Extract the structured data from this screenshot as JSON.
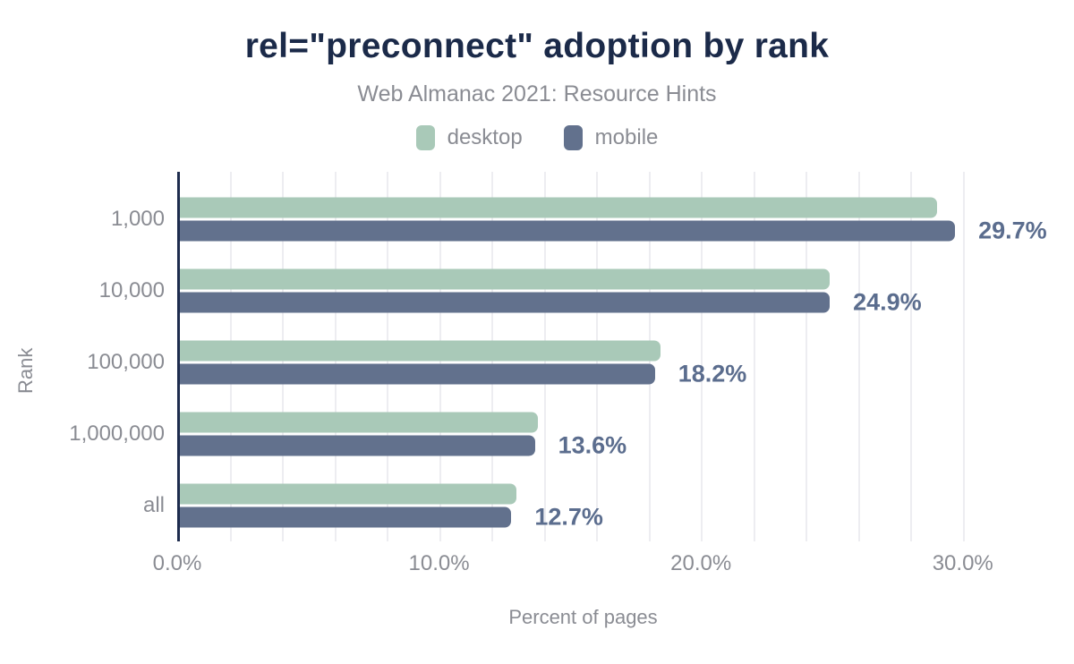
{
  "chart_data": {
    "type": "bar",
    "orientation": "horizontal",
    "title": "rel=\"preconnect\" adoption by rank",
    "subtitle": "Web Almanac 2021: Resource Hints",
    "xlabel": "Percent of pages",
    "ylabel": "Rank",
    "categories": [
      "1,000",
      "10,000",
      "100,000",
      "1,000,000",
      "all"
    ],
    "series": [
      {
        "name": "desktop",
        "color": "#a9c9b8",
        "values": [
          29.0,
          24.9,
          18.4,
          13.7,
          12.9
        ]
      },
      {
        "name": "mobile",
        "color": "#62718d",
        "values": [
          29.7,
          24.9,
          18.2,
          13.6,
          12.7
        ]
      }
    ],
    "value_labels": [
      "29.7%",
      "24.9%",
      "18.2%",
      "13.6%",
      "12.7%"
    ],
    "value_labels_series": "mobile",
    "xlim": [
      0,
      31
    ],
    "x_ticks": [
      {
        "value": 0,
        "label": "0.0%"
      },
      {
        "value": 10,
        "label": "10.0%"
      },
      {
        "value": 20,
        "label": "20.0%"
      },
      {
        "value": 30,
        "label": "30.0%"
      }
    ],
    "gridlines": {
      "axis": "x",
      "every": 2,
      "grid_on": true
    },
    "legend_position": "top"
  },
  "theme": {
    "title_color": "#1b2a49",
    "axis_color": "#1e2c4e",
    "muted_text_color": "#8a8c93",
    "value_label_color": "#5b6d8e",
    "gridline_color": "#ededf1",
    "background_color": "#ffffff"
  }
}
